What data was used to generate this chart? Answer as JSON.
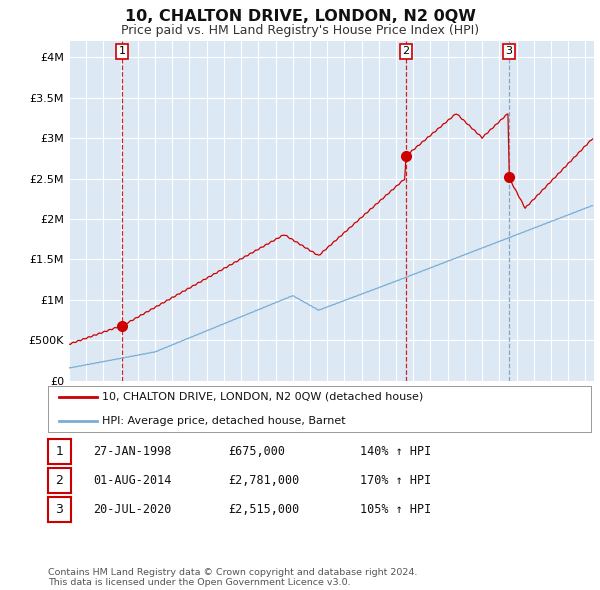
{
  "title": "10, CHALTON DRIVE, LONDON, N2 0QW",
  "subtitle": "Price paid vs. HM Land Registry's House Price Index (HPI)",
  "title_fontsize": 11.5,
  "subtitle_fontsize": 9,
  "background_color": "#ffffff",
  "plot_bg_color": "#dce9f5",
  "grid_color": "#ffffff",
  "sale_line_color": "#cc0000",
  "hpi_line_color": "#7aaed4",
  "x_start_year": 1995,
  "x_end_year": 2025,
  "yticks": [
    0,
    500000,
    1000000,
    1500000,
    2000000,
    2500000,
    3000000,
    3500000,
    4000000
  ],
  "ytick_labels": [
    "£0",
    "£500K",
    "£1M",
    "£1.5M",
    "£2M",
    "£2.5M",
    "£3M",
    "£3.5M",
    "£4M"
  ],
  "ylim_max": 4200000,
  "sales": [
    {
      "date_num": 1998.07,
      "price": 675000,
      "label": "1",
      "vline_color": "#cc0000",
      "vline_style": "--"
    },
    {
      "date_num": 2014.58,
      "price": 2781000,
      "label": "2",
      "vline_color": "#cc0000",
      "vline_style": "--"
    },
    {
      "date_num": 2020.55,
      "price": 2515000,
      "label": "3",
      "vline_color": "#7799bb",
      "vline_style": "--"
    }
  ],
  "legend_sale_label": "10, CHALTON DRIVE, LONDON, N2 0QW (detached house)",
  "legend_hpi_label": "HPI: Average price, detached house, Barnet",
  "table_rows": [
    {
      "num": "1",
      "date": "27-JAN-1998",
      "price": "£675,000",
      "hpi": "140% ↑ HPI"
    },
    {
      "num": "2",
      "date": "01-AUG-2014",
      "price": "£2,781,000",
      "hpi": "170% ↑ HPI"
    },
    {
      "num": "3",
      "date": "20-JUL-2020",
      "price": "£2,515,000",
      "hpi": "105% ↑ HPI"
    }
  ],
  "footnote": "Contains HM Land Registry data © Crown copyright and database right 2024.\nThis data is licensed under the Open Government Licence v3.0."
}
